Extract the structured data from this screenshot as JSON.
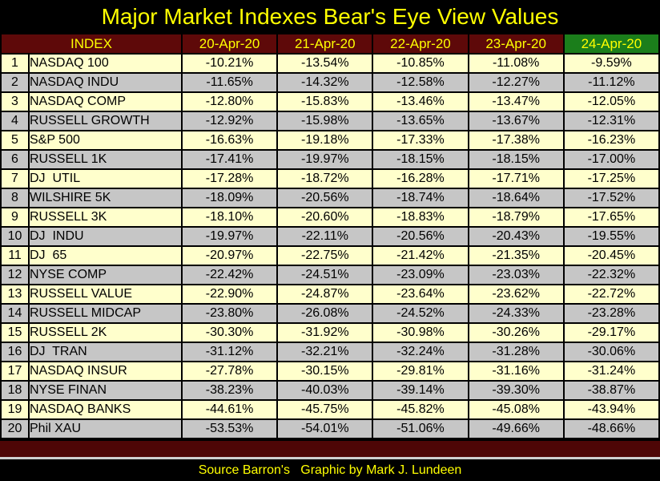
{
  "title": "Major Market Indexes Bear's Eye View Values",
  "footer": "Source Barron's   Graphic by Mark J. Lundeen",
  "colors": {
    "background": "#000000",
    "title_text": "#FFFF00",
    "header_bg": "#5E0909",
    "latest_header_bg": "#1B7E1B",
    "header_text": "#FFFF00",
    "row_odd_bg": "#FFFFCC",
    "row_even_bg": "#C6C6C6",
    "cell_text": "#000000",
    "divider_bar": "#4E0606"
  },
  "chart_data": {
    "type": "table",
    "title": "Major Market Indexes Bear's Eye View Values",
    "index_header": "INDEX",
    "date_headers": [
      "20-Apr-20",
      "21-Apr-20",
      "22-Apr-20",
      "23-Apr-20",
      "24-Apr-20"
    ],
    "rows": [
      {
        "num": "1",
        "name": "NASDAQ 100",
        "values": [
          "-10.21%",
          "-13.54%",
          "-10.85%",
          "-11.08%",
          "-9.59%"
        ]
      },
      {
        "num": "2",
        "name": "NASDAQ INDU",
        "values": [
          "-11.65%",
          "-14.32%",
          "-12.58%",
          "-12.27%",
          "-11.12%"
        ]
      },
      {
        "num": "3",
        "name": "NASDAQ COMP",
        "values": [
          "-12.80%",
          "-15.83%",
          "-13.46%",
          "-13.47%",
          "-12.05%"
        ]
      },
      {
        "num": "4",
        "name": "RUSSELL GROWTH",
        "values": [
          "-12.92%",
          "-15.98%",
          "-13.65%",
          "-13.67%",
          "-12.31%"
        ]
      },
      {
        "num": "5",
        "name": "S&P 500",
        "values": [
          "-16.63%",
          "-19.18%",
          "-17.33%",
          "-17.38%",
          "-16.23%"
        ]
      },
      {
        "num": "6",
        "name": "RUSSELL 1K",
        "values": [
          "-17.41%",
          "-19.97%",
          "-18.15%",
          "-18.15%",
          "-17.00%"
        ]
      },
      {
        "num": "7",
        "name": "DJ  UTIL",
        "values": [
          "-17.28%",
          "-18.72%",
          "-16.28%",
          "-17.71%",
          "-17.25%"
        ]
      },
      {
        "num": "8",
        "name": "WILSHIRE 5K",
        "values": [
          "-18.09%",
          "-20.56%",
          "-18.74%",
          "-18.64%",
          "-17.52%"
        ]
      },
      {
        "num": "9",
        "name": "RUSSELL 3K",
        "values": [
          "-18.10%",
          "-20.60%",
          "-18.83%",
          "-18.79%",
          "-17.65%"
        ]
      },
      {
        "num": "10",
        "name": "DJ  INDU",
        "values": [
          "-19.97%",
          "-22.11%",
          "-20.56%",
          "-20.43%",
          "-19.55%"
        ]
      },
      {
        "num": "11",
        "name": "DJ  65",
        "values": [
          "-20.97%",
          "-22.75%",
          "-21.42%",
          "-21.35%",
          "-20.45%"
        ]
      },
      {
        "num": "12",
        "name": "NYSE COMP",
        "values": [
          "-22.42%",
          "-24.51%",
          "-23.09%",
          "-23.03%",
          "-22.32%"
        ]
      },
      {
        "num": "13",
        "name": "RUSSELL VALUE",
        "values": [
          "-22.90%",
          "-24.87%",
          "-23.64%",
          "-23.62%",
          "-22.72%"
        ]
      },
      {
        "num": "14",
        "name": "RUSSELL MIDCAP",
        "values": [
          "-23.80%",
          "-26.08%",
          "-24.52%",
          "-24.33%",
          "-23.28%"
        ]
      },
      {
        "num": "15",
        "name": "RUSSELL 2K",
        "values": [
          "-30.30%",
          "-31.92%",
          "-30.98%",
          "-30.26%",
          "-29.17%"
        ]
      },
      {
        "num": "16",
        "name": "DJ  TRAN",
        "values": [
          "-31.12%",
          "-32.21%",
          "-32.24%",
          "-31.28%",
          "-30.06%"
        ]
      },
      {
        "num": "17",
        "name": "NASDAQ INSUR",
        "values": [
          "-27.78%",
          "-30.15%",
          "-29.81%",
          "-31.16%",
          "-31.24%"
        ]
      },
      {
        "num": "18",
        "name": "NYSE FINAN",
        "values": [
          "-38.23%",
          "-40.03%",
          "-39.14%",
          "-39.30%",
          "-38.87%"
        ]
      },
      {
        "num": "19",
        "name": "NASDAQ BANKS",
        "values": [
          "-44.61%",
          "-45.75%",
          "-45.82%",
          "-45.08%",
          "-43.94%"
        ]
      },
      {
        "num": "20",
        "name": "Phil XAU",
        "values": [
          "-53.53%",
          "-54.01%",
          "-51.06%",
          "-49.66%",
          "-48.66%"
        ]
      }
    ]
  }
}
